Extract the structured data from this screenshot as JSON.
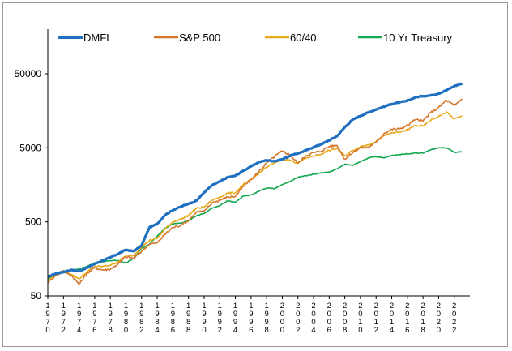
{
  "chart_data": {
    "type": "line",
    "title": "",
    "xlabel": "",
    "ylabel": "",
    "y_scale": "log",
    "ylim": [
      50,
      200000
    ],
    "y_ticks": [
      50,
      500,
      5000,
      50000
    ],
    "y_tick_labels": [
      "50",
      "500",
      "5000",
      "50000"
    ],
    "xlim": [
      1970,
      2024
    ],
    "x_ticks": [
      1970,
      1972,
      1974,
      1976,
      1978,
      1980,
      1982,
      1984,
      1986,
      1988,
      1990,
      1992,
      1994,
      1996,
      1998,
      2000,
      2002,
      2004,
      2006,
      2008,
      2010,
      2012,
      2014,
      2016,
      2018,
      2020,
      2022
    ],
    "x_tick_labels": [
      "1970",
      "1972",
      "1974",
      "1976",
      "1978",
      "1980",
      "1982",
      "1984",
      "1986",
      "1988",
      "1990",
      "1992",
      "1994",
      "1996",
      "1998",
      "2000",
      "2002",
      "2004",
      "2006",
      "2008",
      "2010",
      "2012",
      "2014",
      "2016",
      "2018",
      "2020",
      "2022"
    ],
    "grid": false,
    "legend_position": "top",
    "series": [
      {
        "name": "DMFI",
        "color": "#1f6fc0",
        "x": [
          1970,
          1971,
          1972,
          1973,
          1974,
          1975,
          1976,
          1977,
          1978,
          1979,
          1980,
          1981,
          1982,
          1983,
          1984,
          1985,
          1986,
          1987,
          1988,
          1989,
          1990,
          1991,
          1992,
          1993,
          1994,
          1995,
          1996,
          1997,
          1998,
          1999,
          2000,
          2001,
          2002,
          2003,
          2004,
          2005,
          2006,
          2007,
          2008,
          2009,
          2010,
          2011,
          2012,
          2013,
          2014,
          2015,
          2016,
          2017,
          2018,
          2019,
          2020,
          2021,
          2022,
          2023
        ],
        "y": [
          90,
          100,
          105,
          112,
          108,
          120,
          135,
          150,
          165,
          185,
          210,
          200,
          240,
          420,
          470,
          620,
          720,
          800,
          880,
          960,
          1250,
          1550,
          1750,
          2000,
          2100,
          2450,
          2800,
          3200,
          3400,
          3300,
          3500,
          3900,
          4200,
          4600,
          5100,
          5600,
          6300,
          7200,
          9500,
          12000,
          13500,
          15000,
          16500,
          18000,
          19500,
          20500,
          21500,
          24000,
          25000,
          25500,
          27000,
          30000,
          34000,
          37000
        ]
      },
      {
        "name": "S&P 500",
        "color": "#d4782e",
        "x": [
          1970,
          1971,
          1972,
          1973,
          1974,
          1975,
          1976,
          1977,
          1978,
          1979,
          1980,
          1981,
          1982,
          1983,
          1984,
          1985,
          1986,
          1987,
          1988,
          1989,
          1990,
          1991,
          1992,
          1993,
          1994,
          1995,
          1996,
          1997,
          1998,
          1999,
          2000,
          2001,
          2002,
          2003,
          2004,
          2005,
          2006,
          2007,
          2008,
          2009,
          2010,
          2011,
          2012,
          2013,
          2014,
          2015,
          2016,
          2017,
          2018,
          2019,
          2020,
          2021,
          2022,
          2023
        ],
        "y": [
          75,
          95,
          110,
          95,
          72,
          100,
          120,
          112,
          115,
          135,
          170,
          160,
          200,
          250,
          260,
          340,
          420,
          450,
          520,
          680,
          690,
          900,
          980,
          1080,
          1100,
          1500,
          1850,
          2400,
          3100,
          3800,
          4500,
          4000,
          3100,
          3900,
          4300,
          4500,
          5200,
          5400,
          3500,
          4300,
          5000,
          5100,
          5900,
          7800,
          8900,
          9000,
          10000,
          12000,
          11500,
          15000,
          17500,
          22000,
          18500,
          23000
        ]
      },
      {
        "name": "60/40",
        "color": "#e8a91a",
        "x": [
          1970,
          1971,
          1972,
          1973,
          1974,
          1975,
          1976,
          1977,
          1978,
          1979,
          1980,
          1981,
          1982,
          1983,
          1984,
          1985,
          1986,
          1987,
          1988,
          1989,
          1990,
          1991,
          1992,
          1993,
          1994,
          1995,
          1996,
          1997,
          1998,
          1999,
          2000,
          2001,
          2002,
          2003,
          2004,
          2005,
          2006,
          2007,
          2008,
          2009,
          2010,
          2011,
          2012,
          2013,
          2014,
          2015,
          2016,
          2017,
          2018,
          2019,
          2020,
          2021,
          2022,
          2023
        ],
        "y": [
          80,
          95,
          105,
          98,
          85,
          105,
          125,
          125,
          130,
          145,
          175,
          175,
          230,
          280,
          300,
          400,
          500,
          540,
          610,
          760,
          790,
          980,
          1080,
          1220,
          1230,
          1600,
          1850,
          2250,
          2750,
          3100,
          3500,
          3400,
          3100,
          3600,
          3900,
          4100,
          4600,
          4900,
          3900,
          4600,
          5200,
          5500,
          6100,
          7200,
          8000,
          8100,
          8700,
          10000,
          9800,
          11800,
          13300,
          15200,
          12200,
          13500
        ]
      },
      {
        "name": "10 Yr Treasury",
        "color": "#12a84f",
        "x": [
          1970,
          1971,
          1972,
          1973,
          1974,
          1975,
          1976,
          1977,
          1978,
          1979,
          1980,
          1981,
          1982,
          1983,
          1984,
          1985,
          1986,
          1987,
          1988,
          1989,
          1990,
          1991,
          1992,
          1993,
          1994,
          1995,
          1996,
          1997,
          1998,
          1999,
          2000,
          2001,
          2002,
          2003,
          2004,
          2005,
          2006,
          2007,
          2008,
          2009,
          2010,
          2011,
          2012,
          2013,
          2014,
          2015,
          2016,
          2017,
          2018,
          2019,
          2020,
          2021,
          2022,
          2023
        ],
        "y": [
          85,
          100,
          108,
          112,
          115,
          125,
          140,
          145,
          150,
          150,
          140,
          160,
          220,
          250,
          320,
          410,
          470,
          480,
          520,
          600,
          650,
          760,
          830,
          960,
          920,
          1120,
          1150,
          1290,
          1430,
          1400,
          1600,
          1750,
          2000,
          2100,
          2200,
          2300,
          2350,
          2600,
          3000,
          2900,
          3250,
          3650,
          3800,
          3650,
          3950,
          4050,
          4150,
          4250,
          4250,
          4700,
          5000,
          5000,
          4350,
          4400
        ]
      }
    ]
  }
}
